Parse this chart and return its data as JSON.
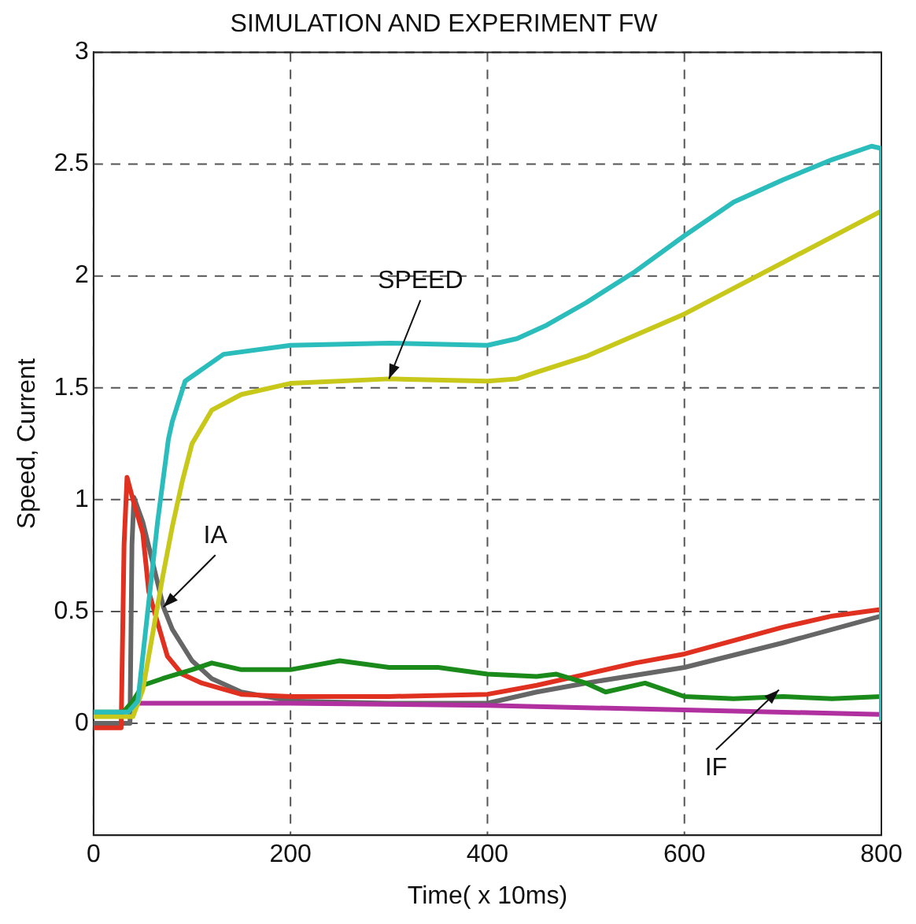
{
  "chart_data": {
    "type": "line",
    "title": "SIMULATION AND EXPERIMENT FW",
    "xlabel": "Time( x 10ms)",
    "ylabel": "Speed, Current",
    "xlim": [
      0,
      800
    ],
    "xticks": [
      0,
      200,
      400,
      600,
      800
    ],
    "ylim": [
      -0.5,
      3
    ],
    "yticks": [
      0,
      0.5,
      1,
      1.5,
      2,
      2.5,
      3
    ],
    "grid": true,
    "legend": false,
    "marker": "none",
    "line_style": "solid",
    "series": [
      {
        "color": "#2bbcbc",
        "x": [
          0,
          35,
          45,
          55,
          65,
          76,
          80,
          93,
          132,
          200,
          300,
          400,
          430,
          460,
          500,
          550,
          600,
          650,
          700,
          750,
          790,
          800,
          800
        ],
        "values": [
          0.05,
          0.05,
          0.1,
          0.5,
          0.9,
          1.27,
          1.35,
          1.53,
          1.65,
          1.69,
          1.7,
          1.69,
          1.72,
          1.78,
          1.88,
          2.02,
          2.18,
          2.33,
          2.43,
          2.52,
          2.58,
          2.57,
          0.02
        ]
      },
      {
        "color": "#c8c81a",
        "x": [
          0,
          40,
          50,
          60,
          70,
          80,
          90,
          100,
          120,
          150,
          200,
          300,
          400,
          430,
          450,
          500,
          600,
          700,
          800
        ],
        "values": [
          0.03,
          0.03,
          0.15,
          0.4,
          0.65,
          0.88,
          1.08,
          1.25,
          1.4,
          1.47,
          1.52,
          1.54,
          1.53,
          1.54,
          1.57,
          1.64,
          1.83,
          2.06,
          2.29
        ]
      },
      {
        "color": "#1a8a1a",
        "x": [
          0,
          30,
          40,
          50,
          70,
          100,
          120,
          150,
          200,
          250,
          300,
          350,
          400,
          450,
          470,
          500,
          520,
          560,
          600,
          650,
          700,
          750,
          800
        ],
        "values": [
          0.05,
          0.05,
          0.1,
          0.17,
          0.2,
          0.24,
          0.27,
          0.24,
          0.24,
          0.28,
          0.25,
          0.25,
          0.22,
          0.21,
          0.22,
          0.18,
          0.14,
          0.18,
          0.12,
          0.11,
          0.12,
          0.11,
          0.12
        ]
      },
      {
        "color": "#b030a0",
        "x": [
          38,
          200,
          400,
          600,
          800
        ],
        "values": [
          0.09,
          0.09,
          0.08,
          0.06,
          0.04
        ]
      },
      {
        "color": "#e03020",
        "x": [
          0,
          28,
          31,
          34,
          40,
          50,
          56,
          65,
          75,
          90,
          110,
          150,
          200,
          300,
          400,
          450,
          500,
          550,
          600,
          650,
          700,
          750,
          800
        ],
        "values": [
          -0.02,
          -0.02,
          0.8,
          1.1,
          1.0,
          0.85,
          0.59,
          0.45,
          0.3,
          0.22,
          0.18,
          0.13,
          0.12,
          0.12,
          0.13,
          0.17,
          0.22,
          0.27,
          0.31,
          0.37,
          0.43,
          0.48,
          0.51
        ]
      },
      {
        "color": "#666666",
        "x": [
          0,
          37,
          39,
          41,
          50,
          60,
          71,
          80,
          100,
          120,
          150,
          200,
          300,
          400,
          450,
          500,
          600,
          700,
          800
        ],
        "values": [
          0,
          0,
          0.8,
          1.01,
          0.9,
          0.72,
          0.52,
          0.42,
          0.28,
          0.2,
          0.14,
          0.1,
          0.09,
          0.09,
          0.14,
          0.18,
          0.25,
          0.36,
          0.48
        ]
      }
    ],
    "annotations": [
      {
        "text": "SPEED",
        "x": 300,
        "y": 1.54
      },
      {
        "text": "IA",
        "x": 71,
        "y": 0.52
      },
      {
        "text": "IF",
        "x": 696,
        "y": 0.15
      }
    ]
  }
}
